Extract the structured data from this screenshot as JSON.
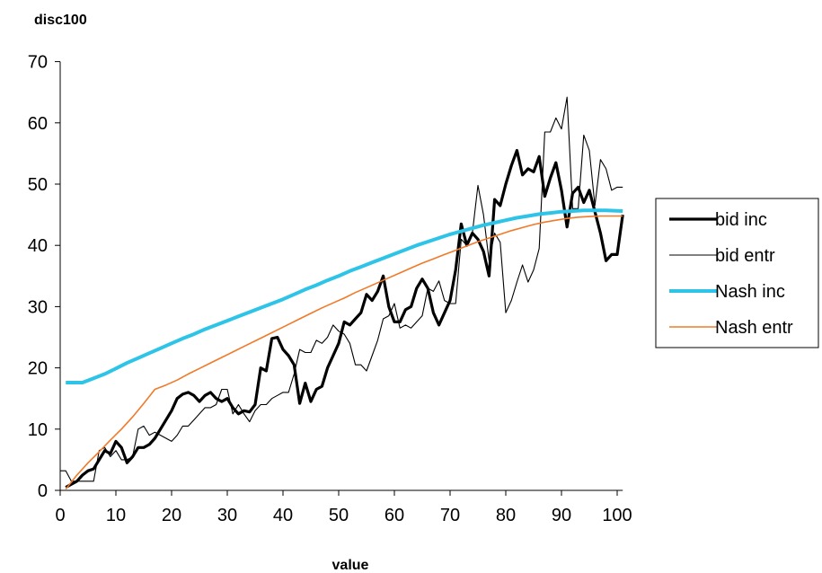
{
  "chart_data": {
    "type": "line",
    "ylabel": "disc100",
    "xlabel": "value",
    "xlim": [
      0,
      101
    ],
    "ylim": [
      0,
      70
    ],
    "x_ticks": [
      0,
      10,
      20,
      30,
      40,
      50,
      60,
      70,
      80,
      90,
      100
    ],
    "y_ticks": [
      0,
      10,
      20,
      30,
      40,
      50,
      60,
      70
    ],
    "grid": false,
    "legend_position": "right",
    "series": [
      {
        "name": "bid inc",
        "color": "#000000",
        "style": "thick",
        "points": [
          [
            1,
            0.5
          ],
          [
            2,
            1
          ],
          [
            3,
            1.5
          ],
          [
            4,
            2.5
          ],
          [
            5,
            3.2
          ],
          [
            6,
            3.5
          ],
          [
            7,
            5
          ],
          [
            8,
            6.5
          ],
          [
            9,
            6
          ],
          [
            10,
            8
          ],
          [
            11,
            7
          ],
          [
            12,
            4.5
          ],
          [
            13,
            5.5
          ],
          [
            14,
            7
          ],
          [
            15,
            7
          ],
          [
            16,
            7.5
          ],
          [
            17,
            8.5
          ],
          [
            18,
            10
          ],
          [
            19,
            11.5
          ],
          [
            20,
            13
          ],
          [
            21,
            15
          ],
          [
            22,
            15.7
          ],
          [
            23,
            16
          ],
          [
            24,
            15.5
          ],
          [
            25,
            14.5
          ],
          [
            26,
            15.5
          ],
          [
            27,
            16
          ],
          [
            28,
            15
          ],
          [
            29,
            14.5
          ],
          [
            30,
            15
          ],
          [
            31,
            13.5
          ],
          [
            32,
            12.5
          ],
          [
            33,
            13
          ],
          [
            34,
            12.8
          ],
          [
            35,
            14
          ],
          [
            36,
            20
          ],
          [
            37,
            19.5
          ],
          [
            38,
            24.8
          ],
          [
            39,
            25
          ],
          [
            40,
            23
          ],
          [
            41,
            22
          ],
          [
            42,
            20.5
          ],
          [
            43,
            14.2
          ],
          [
            44,
            17.5
          ],
          [
            45,
            14.5
          ],
          [
            46,
            16.5
          ],
          [
            47,
            17
          ],
          [
            48,
            20
          ],
          [
            49,
            22
          ],
          [
            50,
            24
          ],
          [
            51,
            27.5
          ],
          [
            52,
            27
          ],
          [
            53,
            28
          ],
          [
            54,
            29
          ],
          [
            55,
            32
          ],
          [
            56,
            31
          ],
          [
            57,
            32.5
          ],
          [
            58,
            35
          ],
          [
            59,
            30
          ],
          [
            60,
            27.5
          ],
          [
            61,
            27.5
          ],
          [
            62,
            29.5
          ],
          [
            63,
            30
          ],
          [
            64,
            33
          ],
          [
            65,
            34.5
          ],
          [
            66,
            33
          ],
          [
            67,
            29
          ],
          [
            68,
            27
          ],
          [
            69,
            29
          ],
          [
            70,
            31
          ],
          [
            71,
            36
          ],
          [
            72,
            43.5
          ],
          [
            73,
            40
          ],
          [
            74,
            42
          ],
          [
            75,
            41
          ],
          [
            76,
            39
          ],
          [
            77,
            35
          ],
          [
            78,
            47.5
          ],
          [
            79,
            46.5
          ],
          [
            80,
            50
          ],
          [
            81,
            53
          ],
          [
            82,
            55.5
          ],
          [
            83,
            51.5
          ],
          [
            84,
            52.5
          ],
          [
            85,
            52
          ],
          [
            86,
            54.5
          ],
          [
            87,
            48
          ],
          [
            88,
            51
          ],
          [
            89,
            53.5
          ],
          [
            90,
            49
          ],
          [
            91,
            43
          ],
          [
            92,
            48.5
          ],
          [
            93,
            49.5
          ],
          [
            94,
            47
          ],
          [
            95,
            49
          ],
          [
            96,
            45.5
          ],
          [
            97,
            42
          ],
          [
            98,
            37.5
          ],
          [
            99,
            38.5
          ],
          [
            100,
            38.5
          ],
          [
            101,
            45
          ]
        ]
      },
      {
        "name": "bid entr",
        "color": "#000000",
        "style": "thin",
        "points": [
          [
            0,
            3.2
          ],
          [
            1,
            3.2
          ],
          [
            2,
            1.5
          ],
          [
            3,
            1.5
          ],
          [
            4,
            1.5
          ],
          [
            5,
            1.5
          ],
          [
            6,
            1.5
          ],
          [
            7,
            6.5
          ],
          [
            8,
            7
          ],
          [
            9,
            5.5
          ],
          [
            10,
            6.5
          ],
          [
            11,
            5
          ],
          [
            12,
            5
          ],
          [
            13,
            5.5
          ],
          [
            14,
            10
          ],
          [
            15,
            10.5
          ],
          [
            16,
            9
          ],
          [
            17,
            9.5
          ],
          [
            18,
            9
          ],
          [
            19,
            8.5
          ],
          [
            20,
            8
          ],
          [
            21,
            9
          ],
          [
            22,
            10.5
          ],
          [
            23,
            10.5
          ],
          [
            24,
            11.5
          ],
          [
            25,
            12.5
          ],
          [
            26,
            13.5
          ],
          [
            27,
            13.5
          ],
          [
            28,
            14
          ],
          [
            29,
            16.5
          ],
          [
            30,
            16.5
          ],
          [
            31,
            12.5
          ],
          [
            32,
            14
          ],
          [
            33,
            12.5
          ],
          [
            34,
            11.2
          ],
          [
            35,
            13
          ],
          [
            36,
            14
          ],
          [
            37,
            14
          ],
          [
            38,
            15
          ],
          [
            39,
            15.5
          ],
          [
            40,
            16
          ],
          [
            41,
            16
          ],
          [
            42,
            19
          ],
          [
            43,
            23
          ],
          [
            44,
            22.5
          ],
          [
            45,
            22.5
          ],
          [
            46,
            24.5
          ],
          [
            47,
            24
          ],
          [
            48,
            25
          ],
          [
            49,
            27
          ],
          [
            50,
            26
          ],
          [
            51,
            25.5
          ],
          [
            52,
            24
          ],
          [
            53,
            20.5
          ],
          [
            54,
            20.5
          ],
          [
            55,
            19.5
          ],
          [
            56,
            22
          ],
          [
            57,
            24.5
          ],
          [
            58,
            28
          ],
          [
            59,
            28.5
          ],
          [
            60,
            30.5
          ],
          [
            61,
            26.5
          ],
          [
            62,
            27
          ],
          [
            63,
            26.5
          ],
          [
            64,
            27.5
          ],
          [
            65,
            28.5
          ],
          [
            66,
            33
          ],
          [
            67,
            32.5
          ],
          [
            68,
            34.2
          ],
          [
            69,
            31
          ],
          [
            70,
            30.5
          ],
          [
            71,
            30.5
          ],
          [
            72,
            41
          ],
          [
            73,
            40
          ],
          [
            74,
            42
          ],
          [
            75,
            49.8
          ],
          [
            76,
            45
          ],
          [
            77,
            37.5
          ],
          [
            78,
            42
          ],
          [
            79,
            40.5
          ],
          [
            80,
            29
          ],
          [
            81,
            31
          ],
          [
            82,
            34
          ],
          [
            83,
            36.8
          ],
          [
            84,
            34
          ],
          [
            85,
            36
          ],
          [
            86,
            39.5
          ],
          [
            87,
            58.5
          ],
          [
            88,
            58.5
          ],
          [
            89,
            60.8
          ],
          [
            90,
            59
          ],
          [
            91,
            64.2
          ],
          [
            92,
            46
          ],
          [
            93,
            46
          ],
          [
            94,
            58
          ],
          [
            95,
            55.5
          ],
          [
            96,
            46.5
          ],
          [
            97,
            54
          ],
          [
            98,
            52.5
          ],
          [
            99,
            49
          ],
          [
            100,
            49.5
          ],
          [
            101,
            49.5
          ]
        ]
      },
      {
        "name": "Nash inc",
        "color": "#2ec4e8",
        "style": "thick",
        "points": [
          [
            1,
            17.6
          ],
          [
            4,
            17.6
          ],
          [
            6,
            18.3
          ],
          [
            8,
            19
          ],
          [
            10,
            19.9
          ],
          [
            12,
            20.8
          ],
          [
            14,
            21.6
          ],
          [
            16,
            22.4
          ],
          [
            18,
            23.2
          ],
          [
            20,
            24
          ],
          [
            22,
            24.8
          ],
          [
            24,
            25.5
          ],
          [
            26,
            26.3
          ],
          [
            28,
            27
          ],
          [
            30,
            27.7
          ],
          [
            32,
            28.4
          ],
          [
            34,
            29.1
          ],
          [
            36,
            29.8
          ],
          [
            38,
            30.5
          ],
          [
            40,
            31.2
          ],
          [
            42,
            32
          ],
          [
            44,
            32.8
          ],
          [
            46,
            33.5
          ],
          [
            48,
            34.3
          ],
          [
            50,
            35
          ],
          [
            52,
            35.8
          ],
          [
            54,
            36.5
          ],
          [
            56,
            37.2
          ],
          [
            58,
            37.9
          ],
          [
            60,
            38.6
          ],
          [
            62,
            39.3
          ],
          [
            64,
            40
          ],
          [
            66,
            40.6
          ],
          [
            68,
            41.2
          ],
          [
            70,
            41.8
          ],
          [
            72,
            42.3
          ],
          [
            74,
            42.8
          ],
          [
            76,
            43.3
          ],
          [
            78,
            43.7
          ],
          [
            80,
            44.1
          ],
          [
            82,
            44.5
          ],
          [
            84,
            44.8
          ],
          [
            86,
            45.1
          ],
          [
            88,
            45.3
          ],
          [
            90,
            45.5
          ],
          [
            92,
            45.6
          ],
          [
            94,
            45.7
          ],
          [
            96,
            45.7
          ],
          [
            98,
            45.7
          ],
          [
            101,
            45.6
          ]
        ]
      },
      {
        "name": "Nash entr",
        "color": "#f07a28",
        "style": "normal",
        "points": [
          [
            1,
            0.2
          ],
          [
            3,
            2.5
          ],
          [
            5,
            4.5
          ],
          [
            7,
            6.3
          ],
          [
            9,
            8.2
          ],
          [
            11,
            10
          ],
          [
            13,
            12
          ],
          [
            15,
            14.2
          ],
          [
            17,
            16.5
          ],
          [
            19,
            17.2
          ],
          [
            21,
            18
          ],
          [
            23,
            19
          ],
          [
            25,
            19.9
          ],
          [
            27,
            20.8
          ],
          [
            29,
            21.7
          ],
          [
            31,
            22.6
          ],
          [
            33,
            23.5
          ],
          [
            35,
            24.4
          ],
          [
            37,
            25.3
          ],
          [
            39,
            26.2
          ],
          [
            41,
            27.1
          ],
          [
            43,
            28
          ],
          [
            45,
            28.9
          ],
          [
            47,
            29.8
          ],
          [
            49,
            30.6
          ],
          [
            51,
            31.4
          ],
          [
            53,
            32.3
          ],
          [
            55,
            33.1
          ],
          [
            57,
            33.9
          ],
          [
            59,
            34.7
          ],
          [
            61,
            35.5
          ],
          [
            63,
            36.3
          ],
          [
            65,
            37.1
          ],
          [
            67,
            37.8
          ],
          [
            69,
            38.5
          ],
          [
            71,
            39.2
          ],
          [
            73,
            39.9
          ],
          [
            75,
            40.6
          ],
          [
            77,
            41.2
          ],
          [
            79,
            41.8
          ],
          [
            81,
            42.4
          ],
          [
            83,
            42.9
          ],
          [
            85,
            43.4
          ],
          [
            87,
            43.8
          ],
          [
            89,
            44.1
          ],
          [
            91,
            44.4
          ],
          [
            93,
            44.6
          ],
          [
            95,
            44.7
          ],
          [
            97,
            44.8
          ],
          [
            101,
            44.8
          ]
        ]
      }
    ]
  }
}
